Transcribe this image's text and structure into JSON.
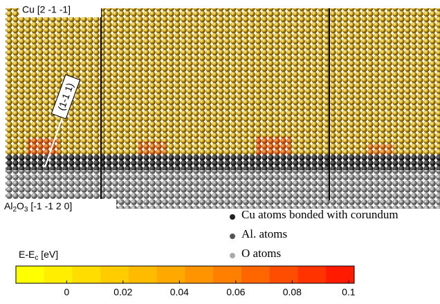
{
  "labels": {
    "top_left": "Cu [2 -1 -1]",
    "plane": "(1-1 1)",
    "bottom_left": {
      "parts": [
        "Al",
        "2",
        "O",
        "3",
        " [-1 -1 2 0]"
      ]
    }
  },
  "legend": {
    "items": [
      {
        "text": "Cu atoms bonded with corundum",
        "color": "#222222"
      },
      {
        "text": "Al. atoms",
        "color": "#555555"
      },
      {
        "text": "O atoms",
        "color": "#aaaaaa"
      }
    ]
  },
  "colorbar": {
    "title": {
      "parts": [
        "E-E",
        "c",
        " [eV]"
      ]
    },
    "lim": [
      -0.018,
      0.102
    ],
    "ticks": [
      0,
      0.02,
      0.04,
      0.06,
      0.08,
      0.1
    ],
    "colors": [
      "#ffff00",
      "#ffee00",
      "#ffdd00",
      "#ffcc00",
      "#ffbb00",
      "#ffa800",
      "#ff9400",
      "#ff7f00",
      "#ff6600",
      "#ff4d00",
      "#ff3300",
      "#ff1a00"
    ]
  }
}
